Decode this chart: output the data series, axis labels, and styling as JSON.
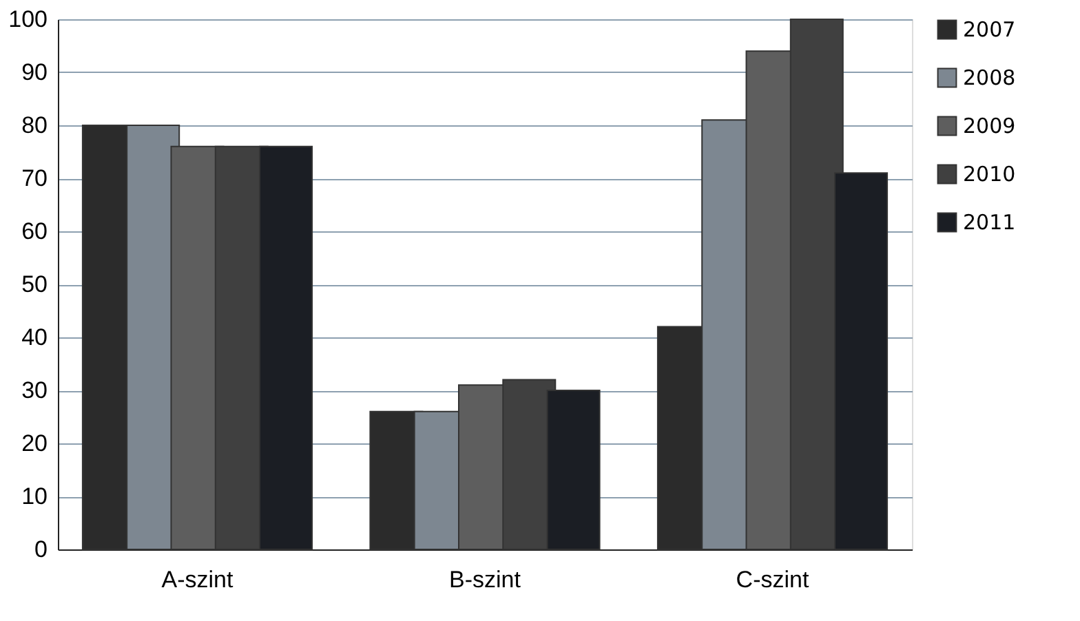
{
  "chart_data": {
    "type": "bar",
    "categories": [
      "A-szint",
      "B-szint",
      "C-szint"
    ],
    "series": [
      {
        "name": "2007",
        "color": "#2b2b2b",
        "values": [
          80,
          26,
          42
        ]
      },
      {
        "name": "2008",
        "color": "#7d8791",
        "values": [
          80,
          26,
          81
        ]
      },
      {
        "name": "2009",
        "color": "#5e5e5e",
        "values": [
          76,
          31,
          94
        ]
      },
      {
        "name": "2010",
        "color": "#404040",
        "values": [
          76,
          32,
          100
        ]
      },
      {
        "name": "2011",
        "color": "#1b1e24",
        "values": [
          76,
          30,
          71
        ]
      }
    ],
    "ylim": [
      0,
      100
    ],
    "yticks": [
      0,
      10,
      20,
      30,
      40,
      50,
      60,
      70,
      80,
      90,
      100
    ],
    "grid": "y",
    "legend": "right"
  }
}
